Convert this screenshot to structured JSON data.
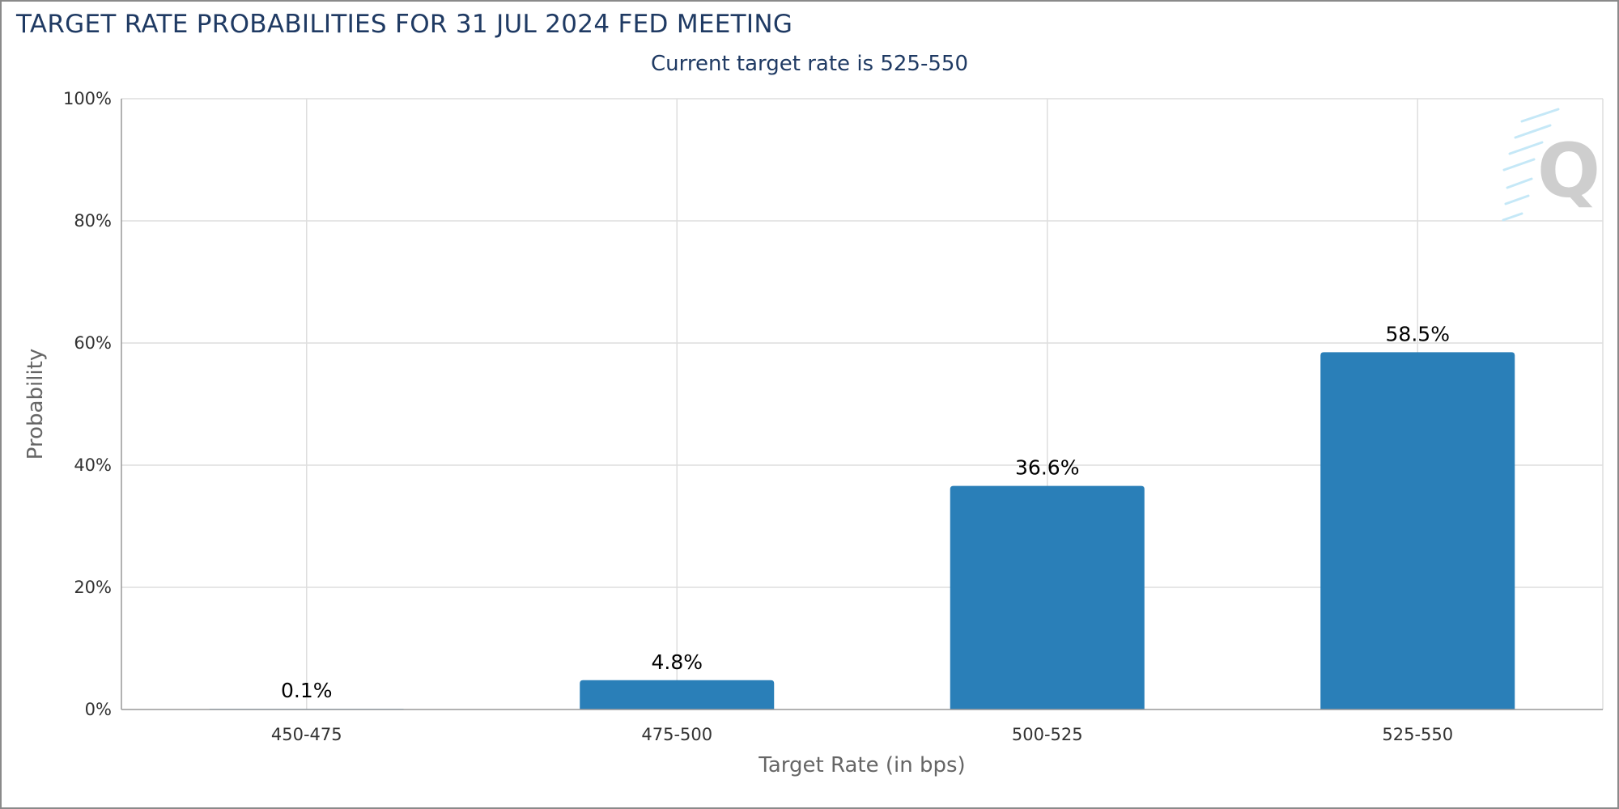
{
  "title": "TARGET RATE PROBABILITIES FOR 31 JUL 2024 FED MEETING",
  "subtitle": "Current target rate is 525-550",
  "chart_data": {
    "type": "bar",
    "title": "TARGET RATE PROBABILITIES FOR 31 JUL 2024 FED MEETING",
    "subtitle": "Current target rate is 525-550",
    "xlabel": "Target Rate (in bps)",
    "ylabel": "Probability",
    "categories": [
      "450-475",
      "475-500",
      "500-525",
      "525-550"
    ],
    "values": [
      0.1,
      4.8,
      36.6,
      58.5
    ],
    "data_labels": [
      "0.1%",
      "4.8%",
      "36.6%",
      "58.5%"
    ],
    "ylim": [
      0,
      100
    ],
    "yticks": [
      "0%",
      "20%",
      "40%",
      "60%",
      "80%",
      "100%"
    ],
    "grid": true,
    "bar_color": "#2a7fb8"
  }
}
